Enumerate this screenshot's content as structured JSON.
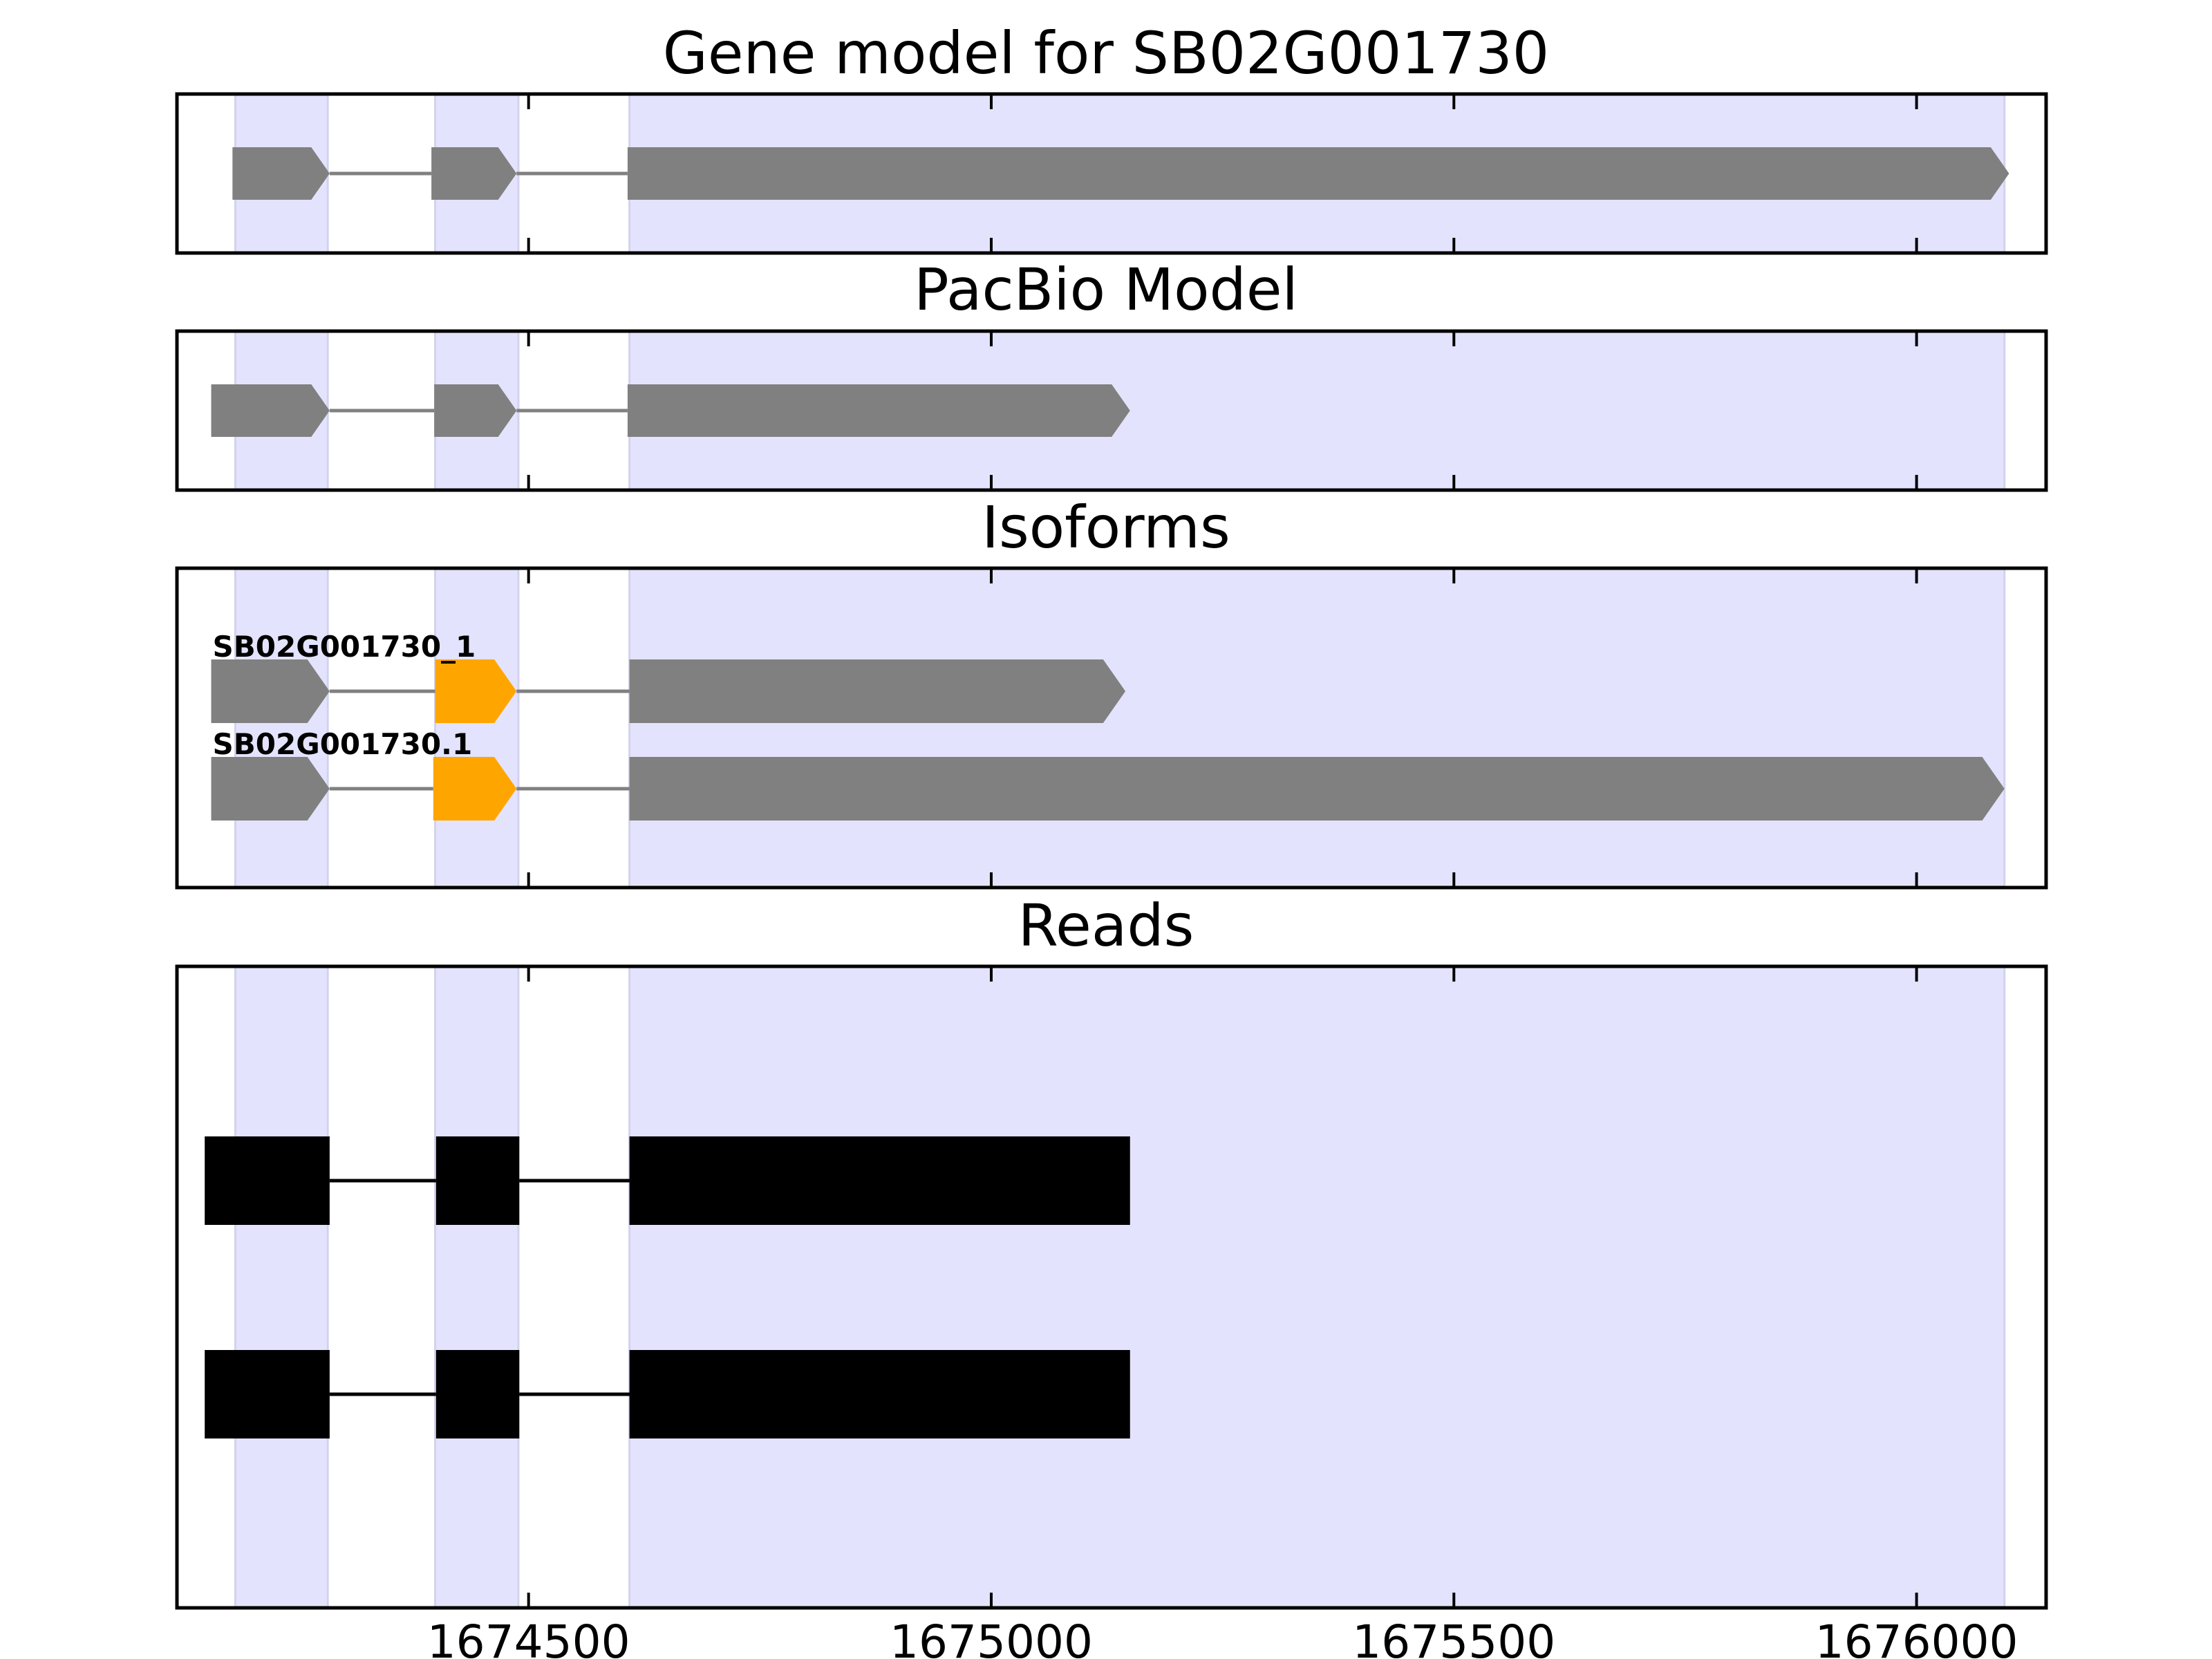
{
  "figure": {
    "panels": [
      {
        "id": "gene",
        "title": "Gene model for SB02G001730"
      },
      {
        "id": "pacbio",
        "title": "PacBio Model"
      },
      {
        "id": "isoforms",
        "title": "Isoforms"
      },
      {
        "id": "reads",
        "title": "Reads"
      }
    ]
  },
  "chart_data": {
    "type": "gene-structure",
    "xlim": [
      1674120,
      1676140
    ],
    "x_ticks": [
      {
        "value": 1674500,
        "label": "1674500"
      },
      {
        "value": 1675000,
        "label": "1675000"
      },
      {
        "value": 1675500,
        "label": "1675500"
      },
      {
        "value": 1676000,
        "label": "1676000"
      }
    ],
    "exon_regions": [
      [
        1674183,
        1674283
      ],
      [
        1674399,
        1674489
      ],
      [
        1674609,
        1676095
      ]
    ],
    "colors": {
      "exon_shade": "#e3e3fd",
      "feature": "#808080",
      "highlight": "#ffa500",
      "read": "#000000",
      "intron_line": "#808080"
    },
    "gene_model": {
      "exons": [
        [
          1674180,
          1674285
        ],
        [
          1674395,
          1674487
        ],
        [
          1674607,
          1676100
        ]
      ]
    },
    "pacbio_model": {
      "exons": [
        [
          1674157,
          1674285
        ],
        [
          1674398,
          1674487
        ],
        [
          1674607,
          1675150
        ]
      ]
    },
    "isoforms": [
      {
        "name": "SB02G001730_1",
        "exons": [
          [
            1674157,
            1674285
          ],
          [
            1674399,
            1674487
          ],
          [
            1674609,
            1675145
          ]
        ],
        "highlight_exon": 1
      },
      {
        "name": "SB02G001730.1",
        "exons": [
          [
            1674157,
            1674285
          ],
          [
            1674397,
            1674487
          ],
          [
            1674609,
            1676095
          ]
        ],
        "highlight_exon": 1
      }
    ],
    "reads": [
      {
        "exons": [
          [
            1674150,
            1674285
          ],
          [
            1674400,
            1674490
          ],
          [
            1674609,
            1675150
          ]
        ]
      },
      {
        "exons": [
          [
            1674150,
            1674285
          ],
          [
            1674400,
            1674490
          ],
          [
            1674609,
            1675150
          ]
        ]
      }
    ]
  }
}
